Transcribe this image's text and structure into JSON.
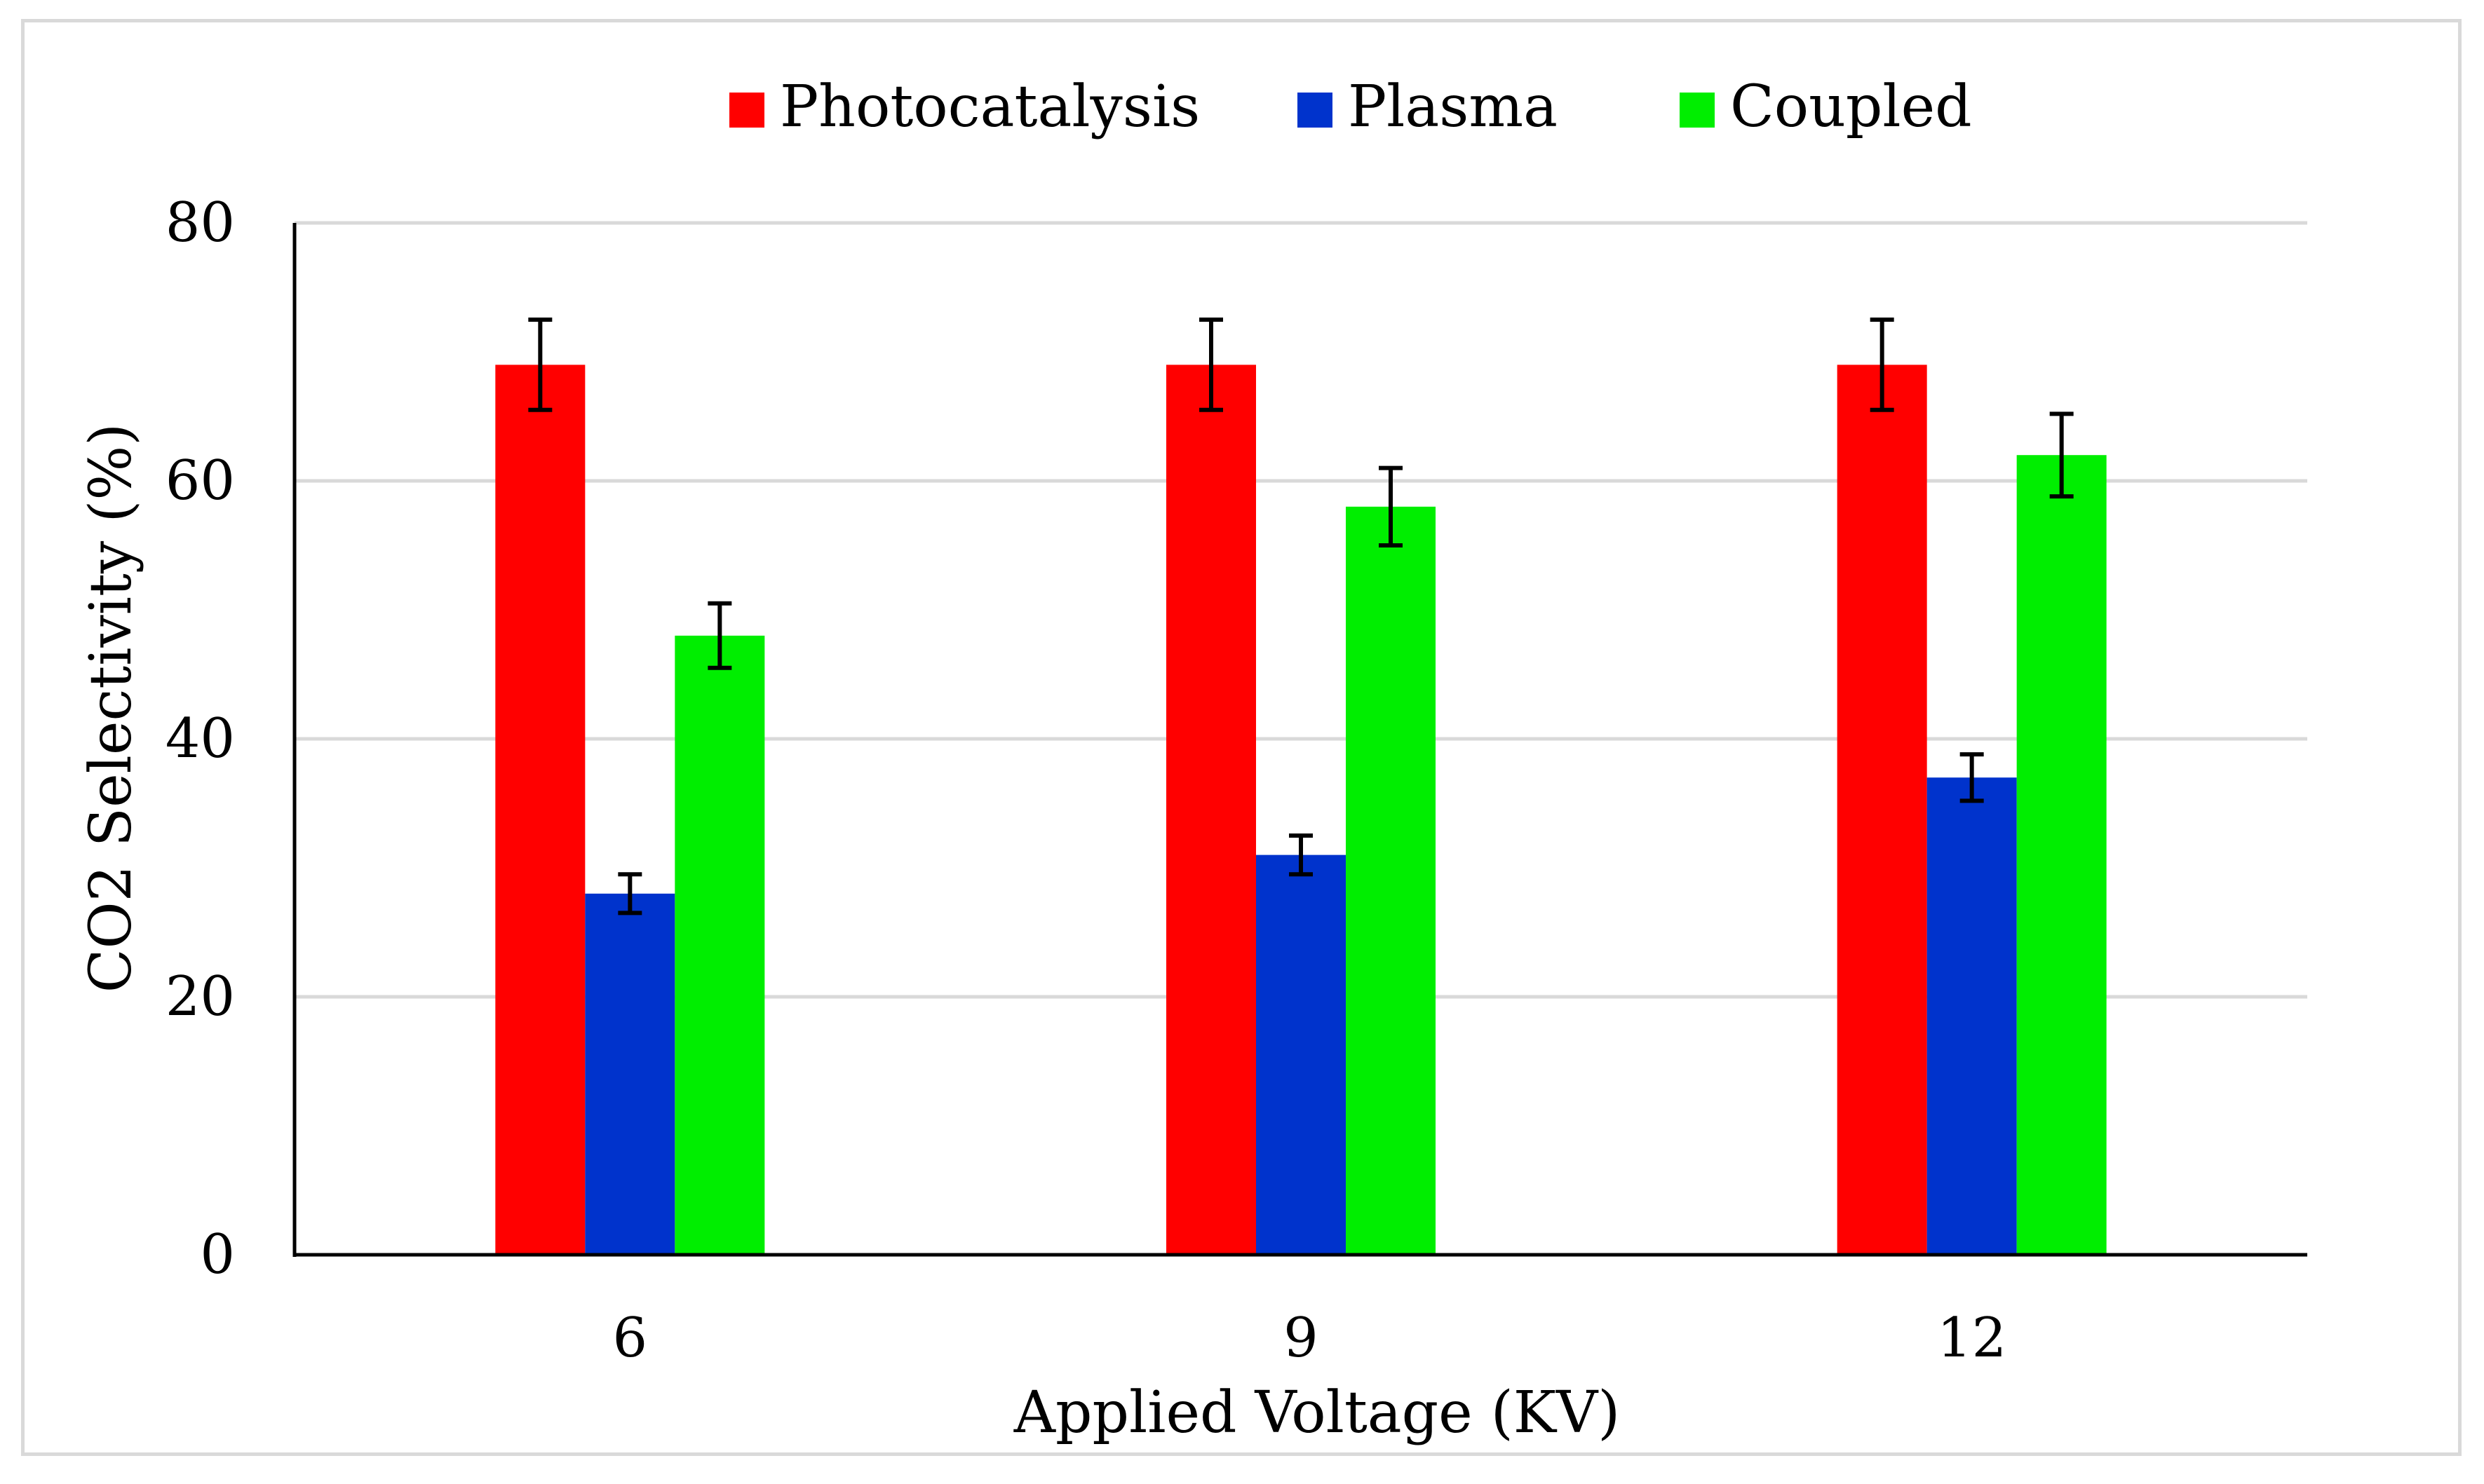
{
  "chart_data": {
    "type": "bar",
    "title": "",
    "xlabel": "Applied Voltage (KV)",
    "ylabel": "CO2 Selectivity (%)",
    "categories": [
      "6",
      "9",
      "12"
    ],
    "ylim": [
      0,
      80
    ],
    "yticks": [
      0,
      20,
      40,
      60,
      80
    ],
    "grid": true,
    "legend_position": "top",
    "series": [
      {
        "name": "Photocatalysis",
        "color": "#ff0000",
        "values": [
          69,
          69,
          69
        ],
        "errors": [
          3.5,
          3.5,
          3.5
        ]
      },
      {
        "name": "Plasma",
        "color": "#0033cc",
        "values": [
          28,
          31,
          37
        ],
        "errors": [
          1.5,
          1.5,
          1.8
        ]
      },
      {
        "name": "Coupled",
        "color": "#00ee00",
        "values": [
          48,
          58,
          62
        ],
        "errors": [
          2.5,
          3.0,
          3.2
        ]
      }
    ]
  }
}
